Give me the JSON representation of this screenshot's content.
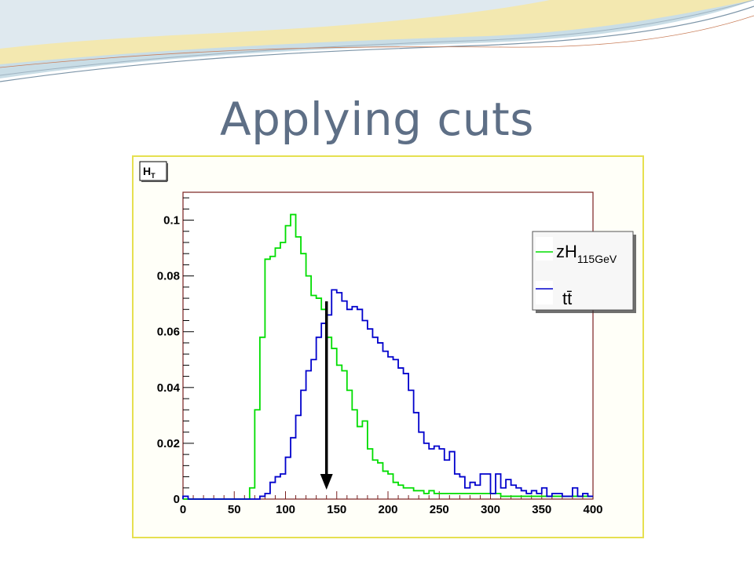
{
  "slide": {
    "title": "Applying cuts"
  },
  "chart_data": {
    "type": "histogram",
    "title": "H_T",
    "title_main": "H",
    "title_sub": "T",
    "xlim": [
      0,
      400
    ],
    "ylim": [
      0,
      0.11
    ],
    "bin_width": 5,
    "xticks": [
      "0",
      "50",
      "100",
      "150",
      "200",
      "250",
      "300",
      "350",
      "400"
    ],
    "yticks": [
      {
        "value": 0,
        "label": "0"
      },
      {
        "value": 0.02,
        "label": "0.02"
      },
      {
        "value": 0.04,
        "label": "0.04"
      },
      {
        "value": 0.06,
        "label": "0.06"
      },
      {
        "value": 0.08,
        "label": "0.08"
      },
      {
        "value": 0.1,
        "label": "0.1"
      }
    ],
    "legend_position": "top-right",
    "cut_arrow_x": 140,
    "series": [
      {
        "name": "zH115GeV",
        "legend_main": "zH",
        "legend_sub": "115GeV",
        "color": "#00dd00",
        "values": [
          0,
          0,
          0,
          0,
          0,
          0,
          0,
          0,
          0,
          0,
          0,
          0,
          0,
          0.004,
          0.032,
          0.058,
          0.086,
          0.087,
          0.09,
          0.092,
          0.098,
          0.102,
          0.094,
          0.088,
          0.08,
          0.073,
          0.072,
          0.068,
          0.058,
          0.054,
          0.048,
          0.046,
          0.039,
          0.032,
          0.026,
          0.028,
          0.018,
          0.014,
          0.013,
          0.01,
          0.009,
          0.006,
          0.005,
          0.004,
          0.004,
          0.003,
          0.003,
          0.002,
          0.003,
          0.002,
          0.002,
          0.002,
          0.002,
          0.002,
          0.002,
          0.002,
          0.002,
          0.002,
          0.002,
          0.002,
          0.002,
          0.002,
          0.001,
          0.001,
          0.001,
          0.001,
          0.001,
          0.001,
          0.001,
          0.001,
          0.001,
          0.001,
          0.001,
          0.001,
          0.001,
          0.001,
          0.001,
          0.001,
          0.001,
          0.001
        ]
      },
      {
        "name": "tt̄",
        "legend_main": "tt̄",
        "color": "#0000cc",
        "values": [
          0.001,
          0,
          0,
          0,
          0,
          0,
          0,
          0,
          0,
          0,
          0,
          0,
          0,
          0,
          0,
          0.001,
          0.002,
          0.006,
          0.008,
          0.009,
          0.015,
          0.022,
          0.03,
          0.039,
          0.046,
          0.05,
          0.058,
          0.063,
          0.066,
          0.075,
          0.074,
          0.071,
          0.068,
          0.069,
          0.068,
          0.064,
          0.061,
          0.058,
          0.056,
          0.053,
          0.051,
          0.05,
          0.047,
          0.045,
          0.039,
          0.031,
          0.024,
          0.02,
          0.018,
          0.019,
          0.018,
          0.014,
          0.017,
          0.009,
          0.008,
          0.004,
          0.006,
          0.005,
          0.009,
          0.009,
          0.002,
          0.009,
          0.004,
          0.007,
          0.005,
          0.004,
          0.003,
          0.002,
          0.003,
          0.002,
          0.004,
          0.001,
          0.002,
          0.002,
          0.001,
          0.001,
          0.004,
          0.001,
          0.002,
          0.001
        ]
      }
    ]
  }
}
